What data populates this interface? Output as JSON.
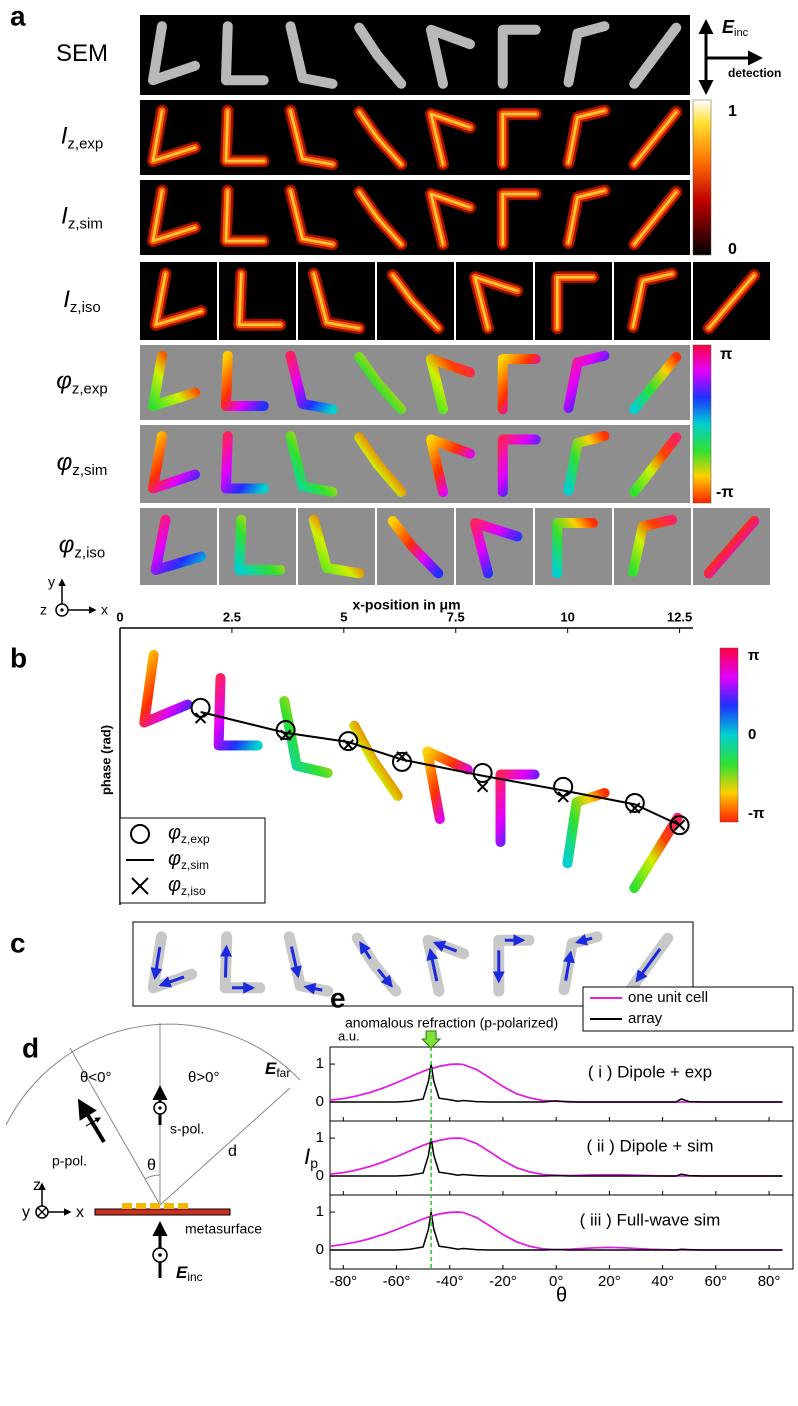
{
  "panel_a": {
    "letter": "a",
    "rows": [
      {
        "symbol": "SEM"
      },
      {
        "symbol": "I",
        "subscript": "z,exp"
      },
      {
        "symbol": "I",
        "subscript": "z,sim"
      },
      {
        "symbol": "I",
        "subscript": "z,iso"
      },
      {
        "symbol": "φ",
        "subscript": "z,exp"
      },
      {
        "symbol": "φ",
        "subscript": "z,sim"
      },
      {
        "symbol": "φ",
        "subscript": "z,iso"
      }
    ],
    "incident": {
      "symbol": "E",
      "subscript": "inc"
    },
    "detection": "detection",
    "intensity_colorbar": {
      "max": "1",
      "min": "0"
    },
    "phase_colorbar": {
      "max": "π",
      "min": "-π"
    }
  },
  "panel_c": {
    "letter": "c"
  },
  "panel_d": {
    "letter": "d",
    "theta_negative": "θ<0°",
    "theta_positive": "θ>0°",
    "far_field": {
      "symbol": "E",
      "subscript": "far"
    },
    "p_pol": "p-pol.",
    "s_pol": "s-pol.",
    "theta": "θ",
    "distance": "d",
    "axis_z": "z",
    "axis_y": "y",
    "axis_x": "x",
    "metasurface": "metasurface",
    "incident": {
      "symbol": "E",
      "subscript": "inc"
    }
  },
  "chart_data": [
    {
      "type": "scatter",
      "panel": "b",
      "xlabel": "x-position in μm",
      "ylabel": "phase (rad)",
      "axis_icon": {
        "y": "y",
        "z": "z",
        "x": "x"
      },
      "xlim": [
        0,
        12.8
      ],
      "ylim": [
        -5,
        1
      ],
      "xticks": [
        0,
        2.5,
        5,
        7.5,
        10,
        12.5
      ],
      "colorbar_labels": [
        "π",
        "0",
        "-π"
      ],
      "x": [
        1.8,
        3.7,
        5.1,
        6.3,
        8.1,
        9.9,
        11.5,
        12.5
      ],
      "series": [
        {
          "name": "φ",
          "name_subscript": "z,exp",
          "marker": "circle",
          "color": "#000000",
          "values": [
            -0.73,
            -1.21,
            -1.45,
            -1.9,
            -2.14,
            -2.44,
            -2.79,
            -3.27
          ]
        },
        {
          "name": "φ",
          "name_subscript": "z,sim",
          "marker": "line",
          "color": "#000000",
          "values": [
            -0.82,
            -1.27,
            -1.47,
            -1.85,
            -2.2,
            -2.52,
            -2.82,
            -3.27
          ]
        },
        {
          "name": "φ",
          "name_subscript": "z,iso",
          "marker": "cross",
          "color": "#000000",
          "values": [
            -0.95,
            -1.32,
            -1.53,
            -1.79,
            -2.44,
            -2.66,
            -2.9,
            -3.27
          ]
        }
      ]
    },
    {
      "type": "line",
      "panel": "e",
      "annotation": "anomalous refraction (p-polarized)",
      "annotation_x": -47,
      "unit_label": "a.u.",
      "ylabel": "I",
      "ylabel_subscript": "p",
      "xlabel": "θ",
      "xlim": [
        -85,
        89
      ],
      "ylim": [
        -0.5,
        1.45
      ],
      "yticks": [
        0,
        1
      ],
      "xticks": [
        {
          "value": -80,
          "label": "-80°"
        },
        {
          "value": -60,
          "label": "-60°"
        },
        {
          "value": -40,
          "label": "-40°"
        },
        {
          "value": -20,
          "label": "-20°"
        },
        {
          "value": 0,
          "label": "0°"
        },
        {
          "value": 20,
          "label": "20°"
        },
        {
          "value": 40,
          "label": "40°"
        },
        {
          "value": 60,
          "label": "60°"
        },
        {
          "value": 80,
          "label": "80°"
        }
      ],
      "series": [
        {
          "name": "one unit cell",
          "color": "#e020e0"
        },
        {
          "name": "array",
          "color": "#000000"
        }
      ],
      "x": [
        -85,
        -80,
        -75,
        -70,
        -65,
        -60,
        -55,
        -50,
        -48,
        -47,
        -46,
        -44,
        -40,
        -37,
        -35,
        -30,
        -25,
        -20,
        -15,
        -10,
        -5,
        0,
        5,
        10,
        15,
        20,
        25,
        30,
        35,
        40,
        45,
        47,
        50,
        55,
        60,
        65,
        70,
        75,
        80,
        85
      ],
      "subplots": [
        {
          "title": "( i ) Dipole + exp",
          "values": [
            [
              0.05,
              0.09,
              0.16,
              0.25,
              0.37,
              0.51,
              0.66,
              0.81,
              0.86,
              0.88,
              0.9,
              0.94,
              0.99,
              1,
              0.99,
              0.86,
              0.64,
              0.41,
              0.22,
              0.11,
              0.04,
              0.02,
              0.01,
              0,
              0,
              0,
              0,
              0,
              0,
              0,
              0,
              0,
              0,
              0,
              0,
              0,
              0,
              0,
              0,
              0
            ],
            [
              0,
              0,
              0,
              0,
              0,
              0,
              0.02,
              0.08,
              0.55,
              1,
              0.55,
              0.1,
              0.06,
              0.02,
              0.04,
              0.01,
              0,
              0,
              0,
              0,
              0,
              0.03,
              0,
              0,
              0,
              0,
              0,
              0,
              0,
              0,
              0,
              0.08,
              0.01,
              0,
              0,
              0,
              0,
              0,
              0,
              0
            ]
          ]
        },
        {
          "title": "( ii ) Dipole + sim",
          "values": [
            [
              0.05,
              0.09,
              0.16,
              0.25,
              0.37,
              0.51,
              0.66,
              0.81,
              0.86,
              0.88,
              0.9,
              0.94,
              0.99,
              1,
              0.99,
              0.86,
              0.64,
              0.41,
              0.22,
              0.11,
              0.04,
              0.02,
              0.01,
              0.02,
              0.03,
              0.03,
              0.03,
              0.02,
              0.01,
              0,
              0,
              0,
              0,
              0,
              0,
              0,
              0,
              0,
              0,
              0
            ],
            [
              0,
              0,
              0,
              0,
              0,
              0,
              0.02,
              0.08,
              0.55,
              1,
              0.55,
              0.1,
              0.06,
              0.02,
              0.04,
              0.01,
              0,
              0,
              0,
              0,
              0,
              0.01,
              0,
              0,
              0,
              0,
              0,
              0,
              0,
              0,
              0,
              0.05,
              0.01,
              0,
              0,
              0,
              0,
              0,
              0,
              0
            ]
          ]
        },
        {
          "title": "( iii ) Full-wave sim",
          "values": [
            [
              0.1,
              0.15,
              0.21,
              0.3,
              0.41,
              0.54,
              0.68,
              0.82,
              0.87,
              0.89,
              0.91,
              0.95,
              0.99,
              1,
              0.99,
              0.86,
              0.64,
              0.41,
              0.22,
              0.1,
              0.03,
              0.01,
              0.02,
              0.04,
              0.06,
              0.07,
              0.06,
              0.04,
              0.02,
              0.01,
              0,
              0,
              0,
              0,
              0,
              0,
              0,
              0,
              0,
              0
            ],
            [
              0,
              0,
              0,
              0,
              0,
              0,
              0.02,
              0.08,
              0.55,
              1,
              0.55,
              0.1,
              0.06,
              0.02,
              0.04,
              0.01,
              0,
              0,
              0,
              0,
              0,
              0.01,
              0,
              0,
              0,
              0,
              0,
              0,
              0,
              0,
              0,
              0.02,
              0.01,
              0,
              0,
              0,
              0,
              0,
              0,
              0
            ]
          ]
        }
      ]
    }
  ]
}
